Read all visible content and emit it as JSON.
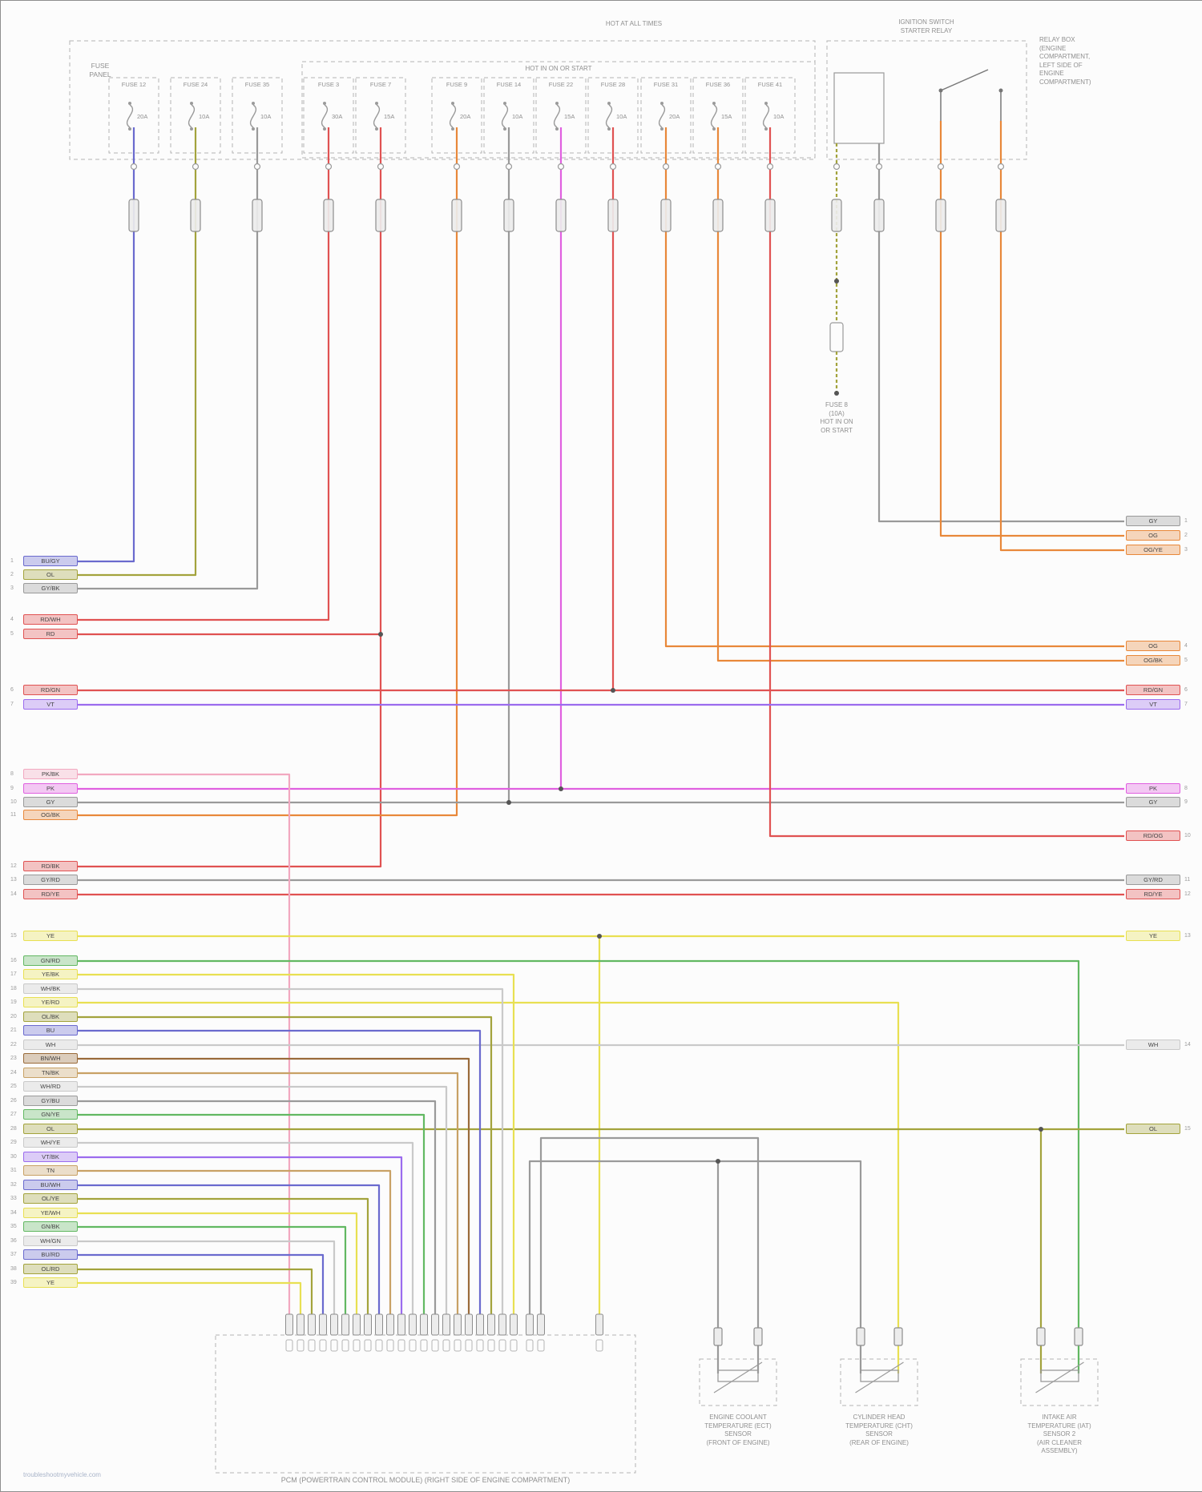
{
  "colors": {
    "BU": "#6a6ace",
    "OL": "#a3a33c",
    "GY": "#9a9a9a",
    "RD": "#e05252",
    "OG": "#e8883a",
    "PK": "#f2a8c0",
    "MG": "#e060e0",
    "VT": "#9b6bee",
    "YE": "#e8e052",
    "GN": "#62b862",
    "WH": "#c9c9c9",
    "BN": "#9a6b3a",
    "TN": "#c8a165",
    "BK": "#555555",
    "outline": "#9a9a9a",
    "dashed_box": "#b5b5b5",
    "text": "#8f8f8f"
  },
  "top_note": "HOT AT ALL TIMES",
  "fuse_panel": {
    "label": [
      "FUSE",
      "PANEL"
    ],
    "section_note": "HOT IN ON OR START",
    "fuses": [
      {
        "name": "FUSE 12",
        "rating": "20A"
      },
      {
        "name": "FUSE 24",
        "rating": "10A"
      },
      {
        "name": "FUSE 35",
        "rating": "10A"
      },
      {
        "name": "FUSE 3",
        "rating": "30A"
      },
      {
        "name": "FUSE 7",
        "rating": "15A"
      },
      {
        "name": "FUSE 9",
        "rating": "20A"
      },
      {
        "name": "FUSE 14",
        "rating": "10A"
      },
      {
        "name": "FUSE 22",
        "rating": "15A"
      },
      {
        "name": "FUSE 28",
        "rating": "10A"
      },
      {
        "name": "FUSE 31",
        "rating": "20A"
      },
      {
        "name": "FUSE 36",
        "rating": "15A"
      },
      {
        "name": "FUSE 41",
        "rating": "10A"
      }
    ]
  },
  "relay": {
    "title": [
      "IGNITION SWITCH",
      "STARTER RELAY"
    ],
    "location_note": [
      "RELAY BOX",
      "(ENGINE",
      "COMPARTMENT,",
      "LEFT SIDE OF",
      "ENGINE",
      "COMPARTMENT)"
    ],
    "inline_fuse_note": [
      "FUSE 8",
      "(10A)",
      "HOT IN ON",
      "OR START"
    ]
  },
  "left_labels": [
    {
      "pin": "1",
      "code": "BU/GY",
      "color": "BU"
    },
    {
      "pin": "2",
      "code": "OL",
      "color": "OL"
    },
    {
      "pin": "3",
      "code": "GY/BK",
      "color": "GY"
    },
    {
      "pin": "4",
      "code": "RD/WH",
      "color": "RD"
    },
    {
      "pin": "5",
      "code": "RD",
      "color": "RD"
    },
    {
      "pin": "6",
      "code": "RD/GN",
      "color": "RD"
    },
    {
      "pin": "7",
      "code": "VT",
      "color": "VT"
    },
    {
      "pin": "8",
      "code": "PK/BK",
      "color": "PK"
    },
    {
      "pin": "9",
      "code": "PK",
      "color": "MG"
    },
    {
      "pin": "10",
      "code": "GY",
      "color": "GY"
    },
    {
      "pin": "11",
      "code": "OG/BK",
      "color": "OG"
    },
    {
      "pin": "12",
      "code": "RD/BK",
      "color": "RD"
    },
    {
      "pin": "13",
      "code": "GY/RD",
      "color": "GY"
    },
    {
      "pin": "14",
      "code": "RD/YE",
      "color": "RD"
    },
    {
      "pin": "15",
      "code": "YE",
      "color": "YE"
    },
    {
      "pin": "16",
      "code": "GN/RD",
      "color": "GN"
    },
    {
      "pin": "17",
      "code": "YE/BK",
      "color": "YE"
    },
    {
      "pin": "18",
      "code": "WH/BK",
      "color": "WH"
    },
    {
      "pin": "19",
      "code": "YE/RD",
      "color": "YE"
    },
    {
      "pin": "20",
      "code": "OL/BK",
      "color": "OL"
    },
    {
      "pin": "21",
      "code": "BU",
      "color": "BU"
    },
    {
      "pin": "22",
      "code": "WH",
      "color": "WH"
    },
    {
      "pin": "23",
      "code": "BN/WH",
      "color": "BN"
    },
    {
      "pin": "24",
      "code": "TN/BK",
      "color": "TN"
    },
    {
      "pin": "25",
      "code": "WH/RD",
      "color": "WH"
    },
    {
      "pin": "26",
      "code": "GY/BU",
      "color": "GY"
    },
    {
      "pin": "27",
      "code": "GN/YE",
      "color": "GN"
    },
    {
      "pin": "28",
      "code": "OL",
      "color": "OL"
    },
    {
      "pin": "29",
      "code": "WH/YE",
      "color": "WH"
    },
    {
      "pin": "30",
      "code": "VT/BK",
      "color": "VT"
    },
    {
      "pin": "31",
      "code": "TN",
      "color": "TN"
    },
    {
      "pin": "32",
      "code": "BU/WH",
      "color": "BU"
    },
    {
      "pin": "33",
      "code": "OL/YE",
      "color": "OL"
    },
    {
      "pin": "34",
      "code": "YE/WH",
      "color": "YE"
    },
    {
      "pin": "35",
      "code": "GN/BK",
      "color": "GN"
    },
    {
      "pin": "36",
      "code": "WH/GN",
      "color": "WH"
    },
    {
      "pin": "37",
      "code": "BU/RD",
      "color": "BU"
    },
    {
      "pin": "38",
      "code": "OL/RD",
      "color": "OL"
    },
    {
      "pin": "39",
      "code": "YE",
      "color": "YE"
    }
  ],
  "right_labels": [
    {
      "pin": "1",
      "code": "GY",
      "color": "GY"
    },
    {
      "pin": "2",
      "code": "OG",
      "color": "OG"
    },
    {
      "pin": "3",
      "code": "OG/YE",
      "color": "OG"
    },
    {
      "pin": "4",
      "code": "OG",
      "color": "OG"
    },
    {
      "pin": "5",
      "code": "OG/BK",
      "color": "OG"
    },
    {
      "pin": "6",
      "code": "RD/GN",
      "color": "RD"
    },
    {
      "pin": "7",
      "code": "VT",
      "color": "VT"
    },
    {
      "pin": "8",
      "code": "PK",
      "color": "MG"
    },
    {
      "pin": "9",
      "code": "GY",
      "color": "GY"
    },
    {
      "pin": "10",
      "code": "RD/OG",
      "color": "RD"
    },
    {
      "pin": "11",
      "code": "GY/RD",
      "color": "GY"
    },
    {
      "pin": "12",
      "code": "RD/YE",
      "color": "RD"
    },
    {
      "pin": "13",
      "code": "YE",
      "color": "YE"
    },
    {
      "pin": "14",
      "code": "WH",
      "color": "WH"
    },
    {
      "pin": "15",
      "code": "OL",
      "color": "OL"
    }
  ],
  "sensors": [
    {
      "lines": [
        "ENGINE COOLANT",
        "TEMPERATURE (ECT)",
        "SENSOR",
        "(FRONT OF ENGINE)"
      ]
    },
    {
      "lines": [
        "CYLINDER HEAD",
        "TEMPERATURE (CHT)",
        "SENSOR",
        "(REAR OF ENGINE)"
      ]
    },
    {
      "lines": [
        "INTAKE AIR",
        "TEMPERATURE (IAT)",
        "SENSOR 2",
        "(AIR CLEANER",
        "ASSEMBLY)"
      ]
    }
  ],
  "pcm_label": "PCM (POWERTRAIN CONTROL MODULE) (RIGHT SIDE OF ENGINE COMPARTMENT)",
  "watermark": "troubleshootmyvehicle.com"
}
